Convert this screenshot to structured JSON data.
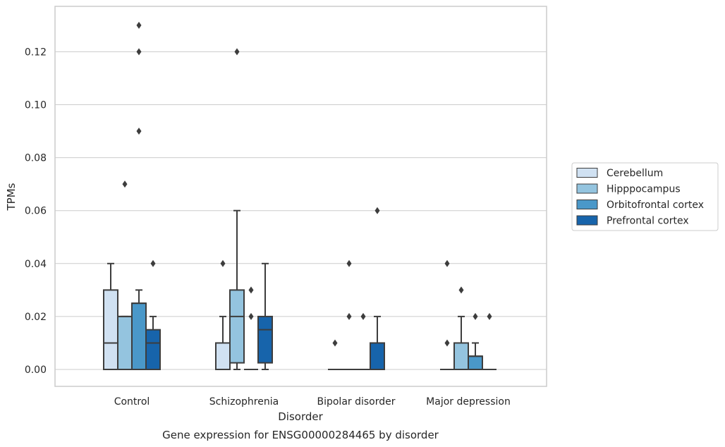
{
  "caption": "Gene expression for ENSG00000284465 by disorder",
  "chart_data": {
    "type": "box",
    "xlabel": "Disorder",
    "ylabel": "TPMs",
    "ylim": [
      -0.0065,
      0.137
    ],
    "yticks": [
      0.0,
      0.02,
      0.04,
      0.06,
      0.08,
      0.1,
      0.12
    ],
    "ytick_labels": [
      "0.00",
      "0.02",
      "0.04",
      "0.06",
      "0.08",
      "0.10",
      "0.12"
    ],
    "grid": "horizontal",
    "legend_position": "right",
    "categories": [
      "Control",
      "Schizophrenia",
      "Bipolar disorder",
      "Major depression"
    ],
    "series": [
      {
        "name": "Cerebellum",
        "color": "#d0e1f2",
        "boxes": [
          {
            "whislo": 0.0,
            "q1": 0.0,
            "med": 0.01,
            "q3": 0.03,
            "whishi": 0.04,
            "fliers": []
          },
          {
            "whislo": 0.0,
            "q1": 0.0,
            "med": 0.0,
            "q3": 0.01,
            "whishi": 0.02,
            "fliers": [
              0.04
            ]
          },
          {
            "whislo": 0.0,
            "q1": 0.0,
            "med": 0.0,
            "q3": 0.0,
            "whishi": 0.0,
            "fliers": [
              0.01
            ]
          },
          {
            "whislo": 0.0,
            "q1": 0.0,
            "med": 0.0,
            "q3": 0.0,
            "whishi": 0.0,
            "fliers": [
              0.01,
              0.04
            ]
          }
        ]
      },
      {
        "name": "Hipppocampus",
        "color": "#94c4df",
        "boxes": [
          {
            "whislo": 0.0,
            "q1": 0.0,
            "med": 0.02,
            "q3": 0.02,
            "whishi": 0.02,
            "fliers": [
              0.07
            ]
          },
          {
            "whislo": 0.0,
            "q1": 0.0025,
            "med": 0.02,
            "q3": 0.03,
            "whishi": 0.06,
            "fliers": [
              0.12
            ]
          },
          {
            "whislo": 0.0,
            "q1": 0.0,
            "med": 0.0,
            "q3": 0.0,
            "whishi": 0.0,
            "fliers": [
              0.02,
              0.04
            ]
          },
          {
            "whislo": 0.0,
            "q1": 0.0,
            "med": 0.0,
            "q3": 0.01,
            "whishi": 0.02,
            "fliers": [
              0.03
            ]
          }
        ]
      },
      {
        "name": "Orbitofrontal cortex",
        "color": "#4a98c9",
        "boxes": [
          {
            "whislo": 0.0,
            "q1": 0.0,
            "med": 0.025,
            "q3": 0.025,
            "whishi": 0.03,
            "fliers": [
              0.09,
              0.12,
              0.13
            ]
          },
          {
            "whislo": 0.0,
            "q1": 0.0,
            "med": 0.0,
            "q3": 0.0,
            "whishi": 0.0,
            "fliers": [
              0.02,
              0.03
            ]
          },
          {
            "whislo": 0.0,
            "q1": 0.0,
            "med": 0.0,
            "q3": 0.0,
            "whishi": 0.0,
            "fliers": [
              0.02
            ]
          },
          {
            "whislo": 0.0,
            "q1": 0.0,
            "med": 0.005,
            "q3": 0.005,
            "whishi": 0.01,
            "fliers": [
              0.02
            ]
          }
        ]
      },
      {
        "name": "Prefrontal cortex",
        "color": "#1764ab",
        "boxes": [
          {
            "whislo": 0.0,
            "q1": 0.0,
            "med": 0.01,
            "q3": 0.015,
            "whishi": 0.02,
            "fliers": [
              0.04
            ]
          },
          {
            "whislo": 0.0,
            "q1": 0.0025,
            "med": 0.015,
            "q3": 0.02,
            "whishi": 0.04,
            "fliers": []
          },
          {
            "whislo": 0.0,
            "q1": 0.0,
            "med": 0.0,
            "q3": 0.01,
            "whishi": 0.02,
            "fliers": [
              0.06
            ]
          },
          {
            "whislo": 0.0,
            "q1": 0.0,
            "med": 0.0,
            "q3": 0.0,
            "whishi": 0.0,
            "fliers": [
              0.02
            ]
          }
        ]
      }
    ]
  }
}
